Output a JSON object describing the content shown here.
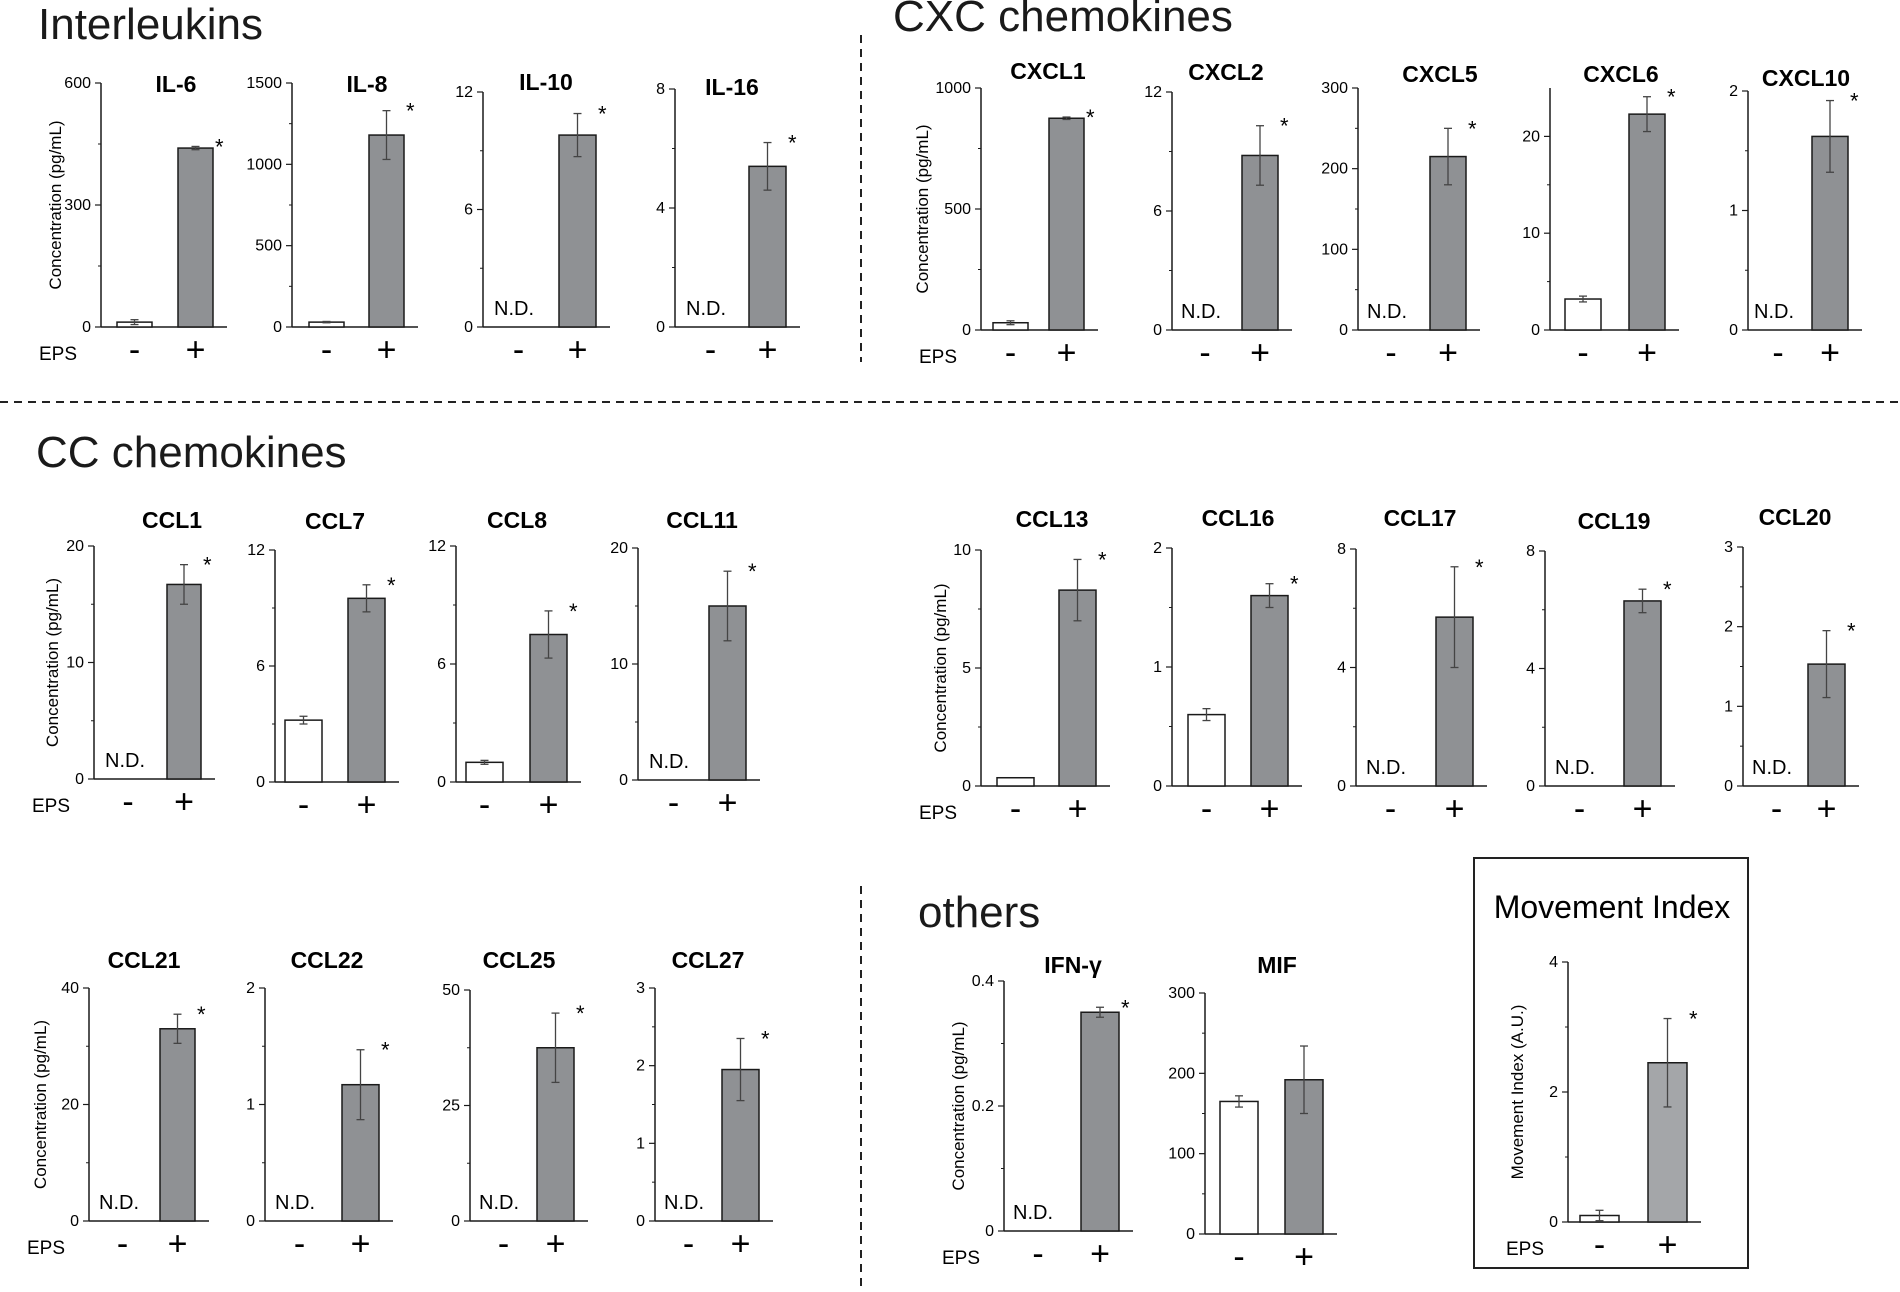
{
  "sections": {
    "interleukins": "Interleukins",
    "cxc": "CXC chemokines",
    "cc": "CC chemokines",
    "others": "others"
  },
  "labels": {
    "ylabel": "Concentration (pg/mL)",
    "eps": "EPS",
    "minus": "-",
    "plus": "+",
    "nd": "N.D.",
    "star": "*"
  },
  "colors": {
    "control": "#ffffff",
    "eps": "#8f9194",
    "eps_light": "#a4a6a9",
    "axis": "#1a1a1a",
    "err": "#444444"
  },
  "chart_data": [
    {
      "type": "bar",
      "title": "IL-6",
      "categories": [
        "-",
        "+"
      ],
      "ylim": [
        0,
        600
      ],
      "yticks": [
        "0",
        "300",
        "600"
      ],
      "values": [
        12,
        440
      ],
      "errors": [
        6,
        4
      ],
      "nd": [
        false,
        false
      ],
      "sig": [
        false,
        true
      ],
      "ylabel": "Concentration (pg/mL)",
      "xlabel": "EPS"
    },
    {
      "type": "bar",
      "title": "IL-8",
      "categories": [
        "-",
        "+"
      ],
      "ylim": [
        0,
        1500
      ],
      "yticks": [
        "0",
        "500",
        "1000",
        "1500"
      ],
      "values": [
        30,
        1180
      ],
      "errors": [
        4,
        150
      ],
      "nd": [
        false,
        false
      ],
      "sig": [
        false,
        true
      ]
    },
    {
      "type": "bar",
      "title": "IL-10",
      "categories": [
        "-",
        "+"
      ],
      "ylim": [
        0,
        12
      ],
      "yticks": [
        "0",
        "6",
        "12"
      ],
      "values": [
        0,
        9.8
      ],
      "errors": [
        0,
        1.1
      ],
      "nd": [
        true,
        false
      ],
      "sig": [
        false,
        true
      ]
    },
    {
      "type": "bar",
      "title": "IL-16",
      "categories": [
        "-",
        "+"
      ],
      "ylim": [
        0,
        8
      ],
      "yticks": [
        "0",
        "4",
        "8"
      ],
      "values": [
        0,
        5.4
      ],
      "errors": [
        0,
        0.8
      ],
      "nd": [
        true,
        false
      ],
      "sig": [
        false,
        true
      ]
    },
    {
      "type": "bar",
      "title": "CXCL1",
      "categories": [
        "-",
        "+"
      ],
      "ylim": [
        0,
        1000
      ],
      "yticks": [
        "0",
        "500",
        "1000"
      ],
      "values": [
        30,
        875
      ],
      "errors": [
        8,
        5
      ],
      "nd": [
        false,
        false
      ],
      "sig": [
        false,
        true
      ],
      "ylabel": "Concentration (pg/mL)",
      "xlabel": "EPS"
    },
    {
      "type": "bar",
      "title": "CXCL2",
      "categories": [
        "-",
        "+"
      ],
      "ylim": [
        0,
        12
      ],
      "yticks": [
        "0",
        "6",
        "12"
      ],
      "values": [
        0,
        8.8
      ],
      "errors": [
        0,
        1.5
      ],
      "nd": [
        true,
        false
      ],
      "sig": [
        false,
        true
      ]
    },
    {
      "type": "bar",
      "title": "CXCL5",
      "categories": [
        "-",
        "+"
      ],
      "ylim": [
        0,
        300
      ],
      "yticks": [
        "0",
        "100",
        "200",
        "300"
      ],
      "values": [
        0,
        215
      ],
      "errors": [
        0,
        35
      ],
      "nd": [
        true,
        false
      ],
      "sig": [
        false,
        true
      ]
    },
    {
      "type": "bar",
      "title": "CXCL6",
      "categories": [
        "-",
        "+"
      ],
      "ylim": [
        0,
        25
      ],
      "yticks": [
        "0",
        "10",
        "20"
      ],
      "values": [
        3.2,
        22.3
      ],
      "errors": [
        0.3,
        1.8
      ],
      "nd": [
        false,
        false
      ],
      "sig": [
        false,
        true
      ]
    },
    {
      "type": "bar",
      "title": "CXCL10",
      "categories": [
        "-",
        "+"
      ],
      "ylim": [
        0,
        2
      ],
      "yticks": [
        "0",
        "1",
        "2"
      ],
      "values": [
        0,
        1.62
      ],
      "errors": [
        0,
        0.3
      ],
      "nd": [
        true,
        false
      ],
      "sig": [
        false,
        true
      ]
    },
    {
      "type": "bar",
      "title": "CCL1",
      "categories": [
        "-",
        "+"
      ],
      "ylim": [
        0,
        20
      ],
      "yticks": [
        "0",
        "10",
        "20"
      ],
      "values": [
        0,
        16.7
      ],
      "errors": [
        0,
        1.7
      ],
      "nd": [
        true,
        false
      ],
      "sig": [
        false,
        true
      ],
      "ylabel": "Concentration (pg/mL)",
      "xlabel": "EPS"
    },
    {
      "type": "bar",
      "title": "CCL7",
      "categories": [
        "-",
        "+"
      ],
      "ylim": [
        0,
        12
      ],
      "yticks": [
        "0",
        "6",
        "12"
      ],
      "values": [
        3.2,
        9.5
      ],
      "errors": [
        0.2,
        0.7
      ],
      "nd": [
        false,
        false
      ],
      "sig": [
        false,
        true
      ]
    },
    {
      "type": "bar",
      "title": "CCL8",
      "categories": [
        "-",
        "+"
      ],
      "ylim": [
        0,
        12
      ],
      "yticks": [
        "0",
        "6",
        "12"
      ],
      "values": [
        1.0,
        7.5
      ],
      "errors": [
        0.1,
        1.2
      ],
      "nd": [
        false,
        false
      ],
      "sig": [
        false,
        true
      ]
    },
    {
      "type": "bar",
      "title": "CCL11",
      "categories": [
        "-",
        "+"
      ],
      "ylim": [
        0,
        20
      ],
      "yticks": [
        "0",
        "10",
        "20"
      ],
      "values": [
        0,
        15
      ],
      "errors": [
        0,
        3
      ],
      "nd": [
        true,
        false
      ],
      "sig": [
        false,
        true
      ]
    },
    {
      "type": "bar",
      "title": "CCL13",
      "categories": [
        "-",
        "+"
      ],
      "ylim": [
        0,
        10
      ],
      "yticks": [
        "0",
        "5",
        "10"
      ],
      "values": [
        0.35,
        8.3
      ],
      "errors": [
        0,
        1.3
      ],
      "nd": [
        false,
        false
      ],
      "sig": [
        false,
        true
      ],
      "ylabel": "Concentration (pg/mL)",
      "xlabel": "EPS"
    },
    {
      "type": "bar",
      "title": "CCL16",
      "categories": [
        "-",
        "+"
      ],
      "ylim": [
        0,
        2
      ],
      "yticks": [
        "0",
        "1",
        "2"
      ],
      "values": [
        0.6,
        1.6
      ],
      "errors": [
        0.05,
        0.1
      ],
      "nd": [
        false,
        false
      ],
      "sig": [
        false,
        true
      ]
    },
    {
      "type": "bar",
      "title": "CCL17",
      "categories": [
        "-",
        "+"
      ],
      "ylim": [
        0,
        8
      ],
      "yticks": [
        "0",
        "4",
        "8"
      ],
      "values": [
        0,
        5.7
      ],
      "errors": [
        0,
        1.7
      ],
      "nd": [
        true,
        false
      ],
      "sig": [
        false,
        true
      ]
    },
    {
      "type": "bar",
      "title": "CCL19",
      "categories": [
        "-",
        "+"
      ],
      "ylim": [
        0,
        8
      ],
      "yticks": [
        "0",
        "4",
        "8"
      ],
      "values": [
        0,
        6.3
      ],
      "errors": [
        0,
        0.4
      ],
      "nd": [
        true,
        false
      ],
      "sig": [
        false,
        true
      ]
    },
    {
      "type": "bar",
      "title": "CCL20",
      "categories": [
        "-",
        "+"
      ],
      "ylim": [
        0,
        3
      ],
      "yticks": [
        "0",
        "1",
        "2",
        "3"
      ],
      "values": [
        0,
        1.53
      ],
      "errors": [
        0,
        0.42
      ],
      "nd": [
        true,
        false
      ],
      "sig": [
        false,
        true
      ]
    },
    {
      "type": "bar",
      "title": "CCL21",
      "categories": [
        "-",
        "+"
      ],
      "ylim": [
        0,
        40
      ],
      "yticks": [
        "0",
        "20",
        "40"
      ],
      "values": [
        0,
        33
      ],
      "errors": [
        0,
        2.5
      ],
      "nd": [
        true,
        false
      ],
      "sig": [
        false,
        true
      ],
      "ylabel": "Concentration (pg/mL)",
      "xlabel": "EPS"
    },
    {
      "type": "bar",
      "title": "CCL22",
      "categories": [
        "-",
        "+"
      ],
      "ylim": [
        0,
        2
      ],
      "yticks": [
        "0",
        "1",
        "2"
      ],
      "values": [
        0,
        1.17
      ],
      "errors": [
        0,
        0.3
      ],
      "nd": [
        true,
        false
      ],
      "sig": [
        false,
        true
      ]
    },
    {
      "type": "bar",
      "title": "CCL25",
      "categories": [
        "-",
        "+"
      ],
      "ylim": [
        0,
        50
      ],
      "yticks": [
        "0",
        "25",
        "50"
      ],
      "values": [
        0,
        37.5
      ],
      "errors": [
        0,
        7.5
      ],
      "nd": [
        true,
        false
      ],
      "sig": [
        false,
        true
      ]
    },
    {
      "type": "bar",
      "title": "CCL27",
      "categories": [
        "-",
        "+"
      ],
      "ylim": [
        0,
        3
      ],
      "yticks": [
        "0",
        "1",
        "2",
        "3"
      ],
      "values": [
        0,
        1.95
      ],
      "errors": [
        0,
        0.4
      ],
      "nd": [
        true,
        false
      ],
      "sig": [
        false,
        true
      ]
    },
    {
      "type": "bar",
      "title": "IFN-γ",
      "categories": [
        "-",
        "+"
      ],
      "ylim": [
        0,
        0.4
      ],
      "yticks": [
        "0",
        "0.2",
        "0.4"
      ],
      "values": [
        0,
        0.35
      ],
      "errors": [
        0,
        0.008
      ],
      "nd": [
        true,
        false
      ],
      "sig": [
        false,
        true
      ],
      "ylabel": "Concentration (pg/mL)",
      "xlabel": "EPS"
    },
    {
      "type": "bar",
      "title": "MIF",
      "categories": [
        "-",
        "+"
      ],
      "ylim": [
        0,
        300
      ],
      "yticks": [
        "0",
        "100",
        "200",
        "300"
      ],
      "values": [
        165,
        192
      ],
      "errors": [
        7,
        42
      ],
      "nd": [
        false,
        false
      ],
      "sig": [
        false,
        false
      ]
    },
    {
      "type": "bar",
      "title": "Movement Index",
      "categories": [
        "-",
        "+"
      ],
      "ylim": [
        0,
        4
      ],
      "yticks": [
        "0",
        "2",
        "4"
      ],
      "values": [
        0.1,
        2.45
      ],
      "errors": [
        0.08,
        0.68
      ],
      "nd": [
        false,
        false
      ],
      "sig": [
        false,
        true
      ],
      "ylabel": "Movement Index (A.U.)",
      "xlabel": "EPS"
    }
  ]
}
